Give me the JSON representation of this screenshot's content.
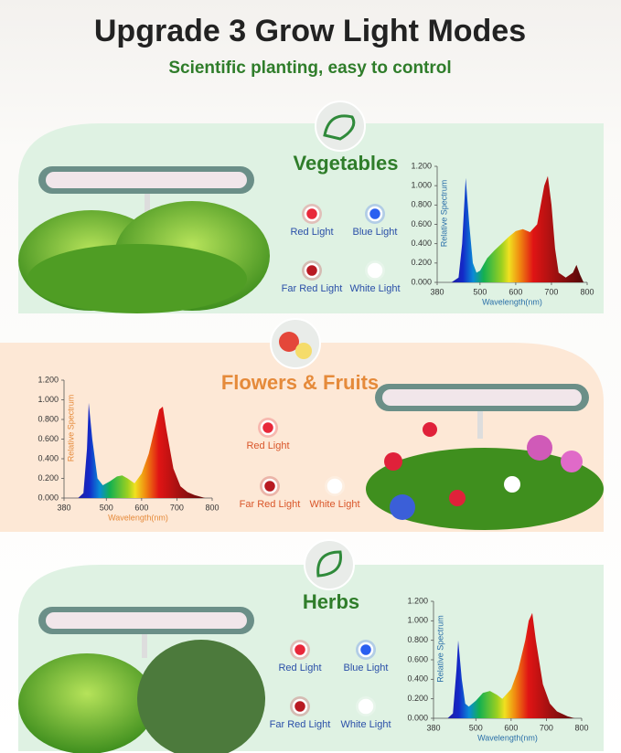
{
  "header": {
    "title": "Upgrade 3 Grow Light Modes",
    "subtitle": "Scientific planting, easy to control"
  },
  "panels": [
    {
      "name": "Vegetables",
      "lights": [
        {
          "label": "Red Light",
          "color": "#e8283a"
        },
        {
          "label": "Blue Light",
          "color": "#2a5ff0"
        },
        {
          "label": "Far Red Light",
          "color": "#b81a22"
        },
        {
          "label": "White Light",
          "color": "#ffffff"
        }
      ]
    },
    {
      "name": "Flowers & Fruits",
      "lights": [
        {
          "label": "Red Light",
          "color": "#e8283a"
        },
        {
          "label": "Far Red Light",
          "color": "#b81a22"
        },
        {
          "label": "White Light",
          "color": "#ffffff"
        }
      ]
    },
    {
      "name": "Herbs",
      "lights": [
        {
          "label": "Red Light",
          "color": "#e8283a"
        },
        {
          "label": "Blue Light",
          "color": "#2a5ff0"
        },
        {
          "label": "Far Red Light",
          "color": "#b81a22"
        },
        {
          "label": "White Light",
          "color": "#ffffff"
        }
      ]
    }
  ],
  "chart_data": [
    {
      "type": "area",
      "x_label": "Wavelength(nm)",
      "y_label": "Relative Spectrum",
      "x": [
        420,
        440,
        450,
        460,
        470,
        480,
        490,
        500,
        520,
        540,
        560,
        580,
        600,
        620,
        640,
        660,
        670,
        680,
        690,
        700,
        710,
        720,
        740,
        760,
        770,
        780,
        790
      ],
      "values": [
        0,
        0.05,
        0.4,
        1.08,
        0.6,
        0.2,
        0.1,
        0.12,
        0.25,
        0.33,
        0.4,
        0.47,
        0.53,
        0.55,
        0.52,
        0.6,
        0.8,
        1.0,
        1.1,
        0.8,
        0.35,
        0.1,
        0.05,
        0.1,
        0.18,
        0.08,
        0
      ],
      "xlim": [
        380,
        800
      ],
      "xticks": [
        380,
        500,
        600,
        700,
        800
      ],
      "ylim": [
        0,
        1.2
      ],
      "yticks": [
        {
          "value": 0,
          "label": "0.000"
        },
        {
          "value": 0.2,
          "label": "0.200"
        },
        {
          "value": 0.4,
          "label": "0.400"
        },
        {
          "value": 0.6,
          "label": "0.600"
        },
        {
          "value": 0.8,
          "label": "0.800"
        },
        {
          "value": 1.0,
          "label": "1.000"
        },
        {
          "value": 1.2,
          "label": "1.200"
        }
      ]
    },
    {
      "type": "area",
      "x_label": "Wavelength(nm)",
      "y_label": "Relative Spectrum",
      "x": [
        420,
        435,
        445,
        450,
        460,
        475,
        490,
        510,
        530,
        545,
        560,
        580,
        600,
        620,
        640,
        650,
        660,
        670,
        690,
        710,
        730,
        750,
        780
      ],
      "values": [
        0,
        0.05,
        0.5,
        0.97,
        0.6,
        0.2,
        0.13,
        0.17,
        0.22,
        0.23,
        0.2,
        0.15,
        0.25,
        0.45,
        0.75,
        0.9,
        0.93,
        0.7,
        0.3,
        0.12,
        0.06,
        0.03,
        0
      ],
      "xlim": [
        380,
        800
      ],
      "xticks": [
        380,
        500,
        600,
        700,
        800
      ],
      "ylim": [
        0,
        1.2
      ],
      "yticks": [
        {
          "value": 0,
          "label": "0.000"
        },
        {
          "value": 0.2,
          "label": "0.200"
        },
        {
          "value": 0.4,
          "label": "0.400"
        },
        {
          "value": 0.6,
          "label": "0.600"
        },
        {
          "value": 0.8,
          "label": "0.800"
        },
        {
          "value": 1.0,
          "label": "1.000"
        },
        {
          "value": 1.2,
          "label": "1.200"
        }
      ]
    },
    {
      "type": "area",
      "x_label": "Wavelength(nm)",
      "y_label": "Relative Spectrum",
      "x": [
        420,
        435,
        445,
        450,
        460,
        470,
        480,
        500,
        520,
        540,
        560,
        575,
        600,
        620,
        640,
        650,
        660,
        670,
        690,
        710,
        730,
        760,
        780
      ],
      "values": [
        0,
        0.05,
        0.5,
        0.8,
        0.4,
        0.15,
        0.12,
        0.18,
        0.26,
        0.28,
        0.24,
        0.2,
        0.3,
        0.5,
        0.8,
        1.0,
        1.08,
        0.8,
        0.35,
        0.15,
        0.07,
        0.02,
        0
      ],
      "xlim": [
        380,
        800
      ],
      "xticks": [
        380,
        500,
        600,
        700,
        800
      ],
      "ylim": [
        0,
        1.2
      ],
      "yticks": [
        {
          "value": 0,
          "label": "0.000"
        },
        {
          "value": 0.2,
          "label": "0.200"
        },
        {
          "value": 0.4,
          "label": "0.400"
        },
        {
          "value": 0.6,
          "label": "0.600"
        },
        {
          "value": 0.8,
          "label": "0.800"
        },
        {
          "value": 1.0,
          "label": "1.000"
        },
        {
          "value": 1.2,
          "label": "1.200"
        }
      ]
    }
  ]
}
